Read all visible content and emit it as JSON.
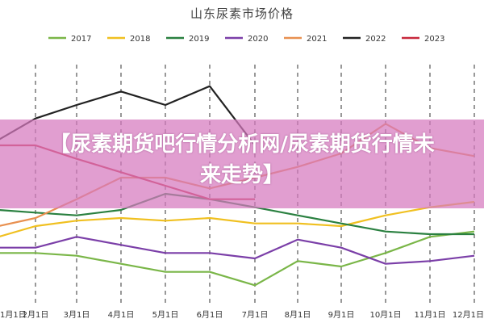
{
  "chart_data": {
    "type": "line",
    "title": "山东尿素市场价格",
    "x_ticks": [
      "1月1日",
      "2月1日",
      "3月1日",
      "4月1日",
      "5月1日",
      "6月1日",
      "7月1日",
      "8月1日",
      "9月1日",
      "10月1日",
      "11月1日",
      "12月1日"
    ],
    "grid": "vertical-dashed",
    "legend_position": "top",
    "series": [
      {
        "name": "2017",
        "color": "#7ab648",
        "values": [
          2.0,
          2.0,
          1.9,
          1.6,
          1.3,
          1.3,
          0.8,
          1.7,
          1.5,
          2.0,
          2.6,
          2.8
        ]
      },
      {
        "name": "2018",
        "color": "#f0c020",
        "values": [
          2.6,
          3.0,
          3.2,
          3.3,
          3.2,
          3.3,
          3.1,
          3.1,
          3.0,
          3.4,
          3.7,
          3.9
        ]
      },
      {
        "name": "2019",
        "color": "#2a8040",
        "values": [
          3.6,
          3.5,
          3.4,
          3.6,
          4.2,
          4.0,
          3.7,
          3.4,
          3.1,
          2.8,
          2.7,
          2.7
        ]
      },
      {
        "name": "2020",
        "color": "#7b3fa8",
        "values": [
          2.2,
          2.2,
          2.6,
          2.3,
          2.0,
          2.0,
          1.8,
          2.5,
          2.2,
          1.6,
          1.7,
          1.9
        ]
      },
      {
        "name": "2021",
        "color": "#e89050",
        "values": [
          3.0,
          3.3,
          4.0,
          4.8,
          4.8,
          4.4,
          4.8,
          5.2,
          5.7,
          6.8,
          5.9,
          5.6
        ]
      },
      {
        "name": "2022",
        "color": "#222222",
        "values": [
          6.2,
          7.0,
          7.5,
          8.0,
          7.5,
          8.2,
          6.0,
          null,
          null,
          null,
          null,
          null
        ]
      },
      {
        "name": "2023",
        "color": "#c8283c",
        "values": [
          6.0,
          6.0,
          5.5,
          5.0,
          4.5,
          4.0,
          4.0,
          null,
          null,
          null,
          null,
          null
        ]
      }
    ]
  },
  "banner": {
    "text": "【尿素期货吧行情分析网/尿素期货行情未来走势】"
  }
}
